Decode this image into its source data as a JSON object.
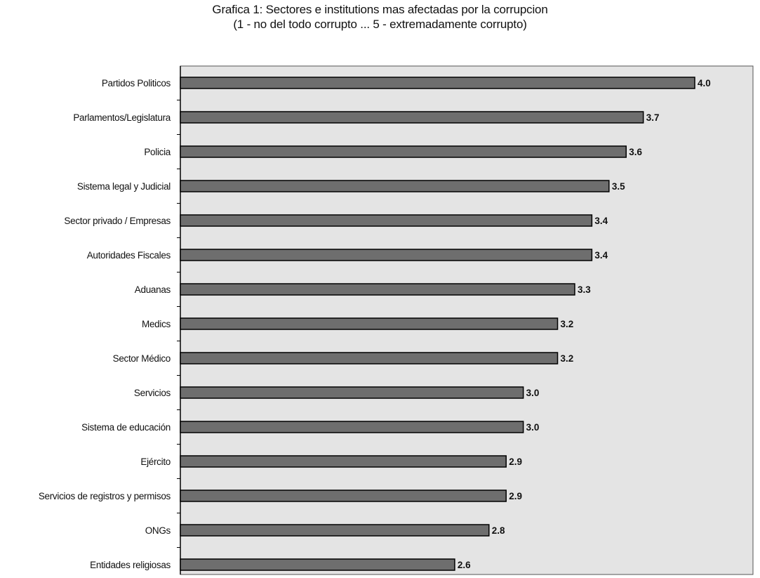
{
  "chart_data": {
    "type": "bar",
    "orientation": "horizontal",
    "title": "Grafica 1: Sectores e institutions mas afectadas por la corrupcion",
    "subtitle": "(1 - no del todo corrupto ... 5 - extremadamente corrupto)",
    "categories": [
      "Partidos Politicos",
      "Parlamentos/Legislatura",
      "Policia",
      "Sistema legal y Judicial",
      "Sector privado / Empresas",
      "Autoridades Fiscales",
      "Aduanas",
      "Medics",
      "Sector Médico",
      "Servicios",
      "Sistema de educación",
      "Ejército",
      "Servicios de registros y permisos",
      "ONGs",
      "Entidades religiosas"
    ],
    "values": [
      4.0,
      3.7,
      3.6,
      3.5,
      3.4,
      3.4,
      3.3,
      3.2,
      3.2,
      3.0,
      3.0,
      2.9,
      2.9,
      2.8,
      2.6
    ],
    "value_labels": [
      "4.0",
      "3.7",
      "3.6",
      "3.5",
      "3.4",
      "3.4",
      "3.3",
      "3.2",
      "3.2",
      "3.0",
      "3.0",
      "2.9",
      "2.9",
      "2.8",
      "2.6"
    ],
    "xlim": [
      1,
      5
    ],
    "grid": false,
    "colors": {
      "bar": "#6e6e6e",
      "plot_background": "#e4e4e4",
      "border": "#000000"
    }
  }
}
